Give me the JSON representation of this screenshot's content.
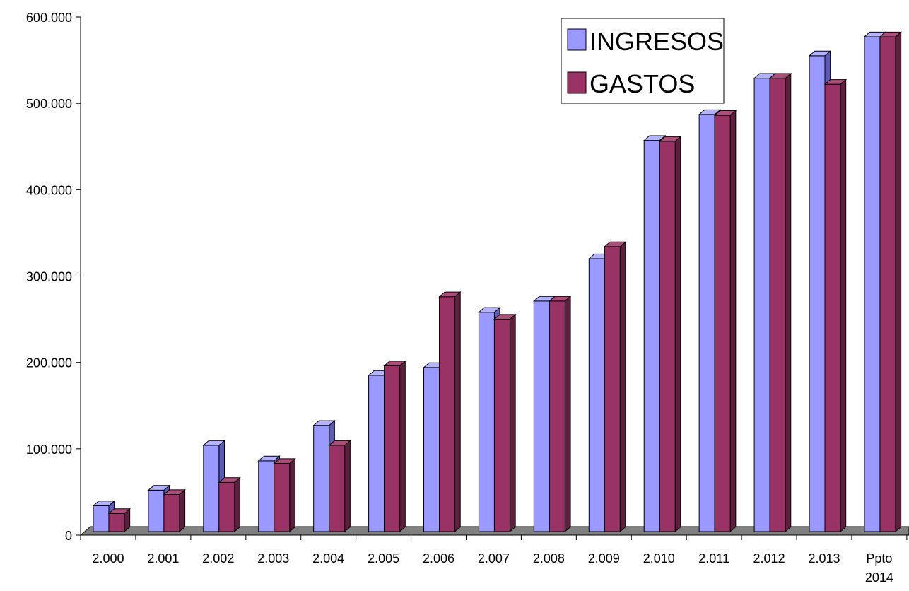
{
  "chart_data": {
    "type": "bar",
    "title": "",
    "xlabel": "",
    "ylabel": "",
    "ylim": [
      0,
      600000
    ],
    "yticks": [
      0,
      100000,
      200000,
      300000,
      400000,
      500000,
      600000
    ],
    "ytick_labels": [
      "0",
      "100.000",
      "200.000",
      "300.000",
      "400.000",
      "500.000",
      "600.000"
    ],
    "grid": false,
    "three_d": true,
    "legend_position": "top-right",
    "categories": [
      "2.000",
      "2.001",
      "2.002",
      "2.003",
      "2.004",
      "2.005",
      "2.006",
      "2.007",
      "2.008",
      "2.009",
      "2.010",
      "2.011",
      "2.012",
      "2.013",
      "Ppto 2014"
    ],
    "series": [
      {
        "name": "INGRESOS",
        "color": "#9999ff",
        "values": [
          30000,
          48000,
          100000,
          82000,
          123000,
          181000,
          190000,
          254000,
          267000,
          316000,
          453000,
          483000,
          525000,
          551000,
          573000
        ]
      },
      {
        "name": "GASTOS",
        "color": "#993366",
        "values": [
          21000,
          43000,
          57000,
          79000,
          100000,
          192000,
          272000,
          246000,
          267000,
          330000,
          452000,
          482000,
          525000,
          518000,
          573000
        ]
      }
    ]
  }
}
